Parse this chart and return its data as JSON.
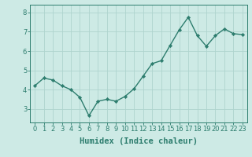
{
  "x": [
    0,
    1,
    2,
    3,
    4,
    5,
    6,
    7,
    8,
    9,
    10,
    11,
    12,
    13,
    14,
    15,
    16,
    17,
    18,
    19,
    20,
    21,
    22,
    23
  ],
  "y": [
    4.2,
    4.6,
    4.5,
    4.2,
    4.0,
    3.6,
    2.65,
    3.4,
    3.5,
    3.4,
    3.65,
    4.05,
    4.7,
    5.35,
    5.5,
    6.3,
    7.1,
    7.75,
    6.8,
    6.25,
    6.8,
    7.15,
    6.9,
    6.85
  ],
  "line_color": "#2d7d6e",
  "marker": "D",
  "marker_size": 2.2,
  "line_width": 1.0,
  "bg_color": "#cdeae5",
  "grid_color": "#aed4ce",
  "axis_color": "#2d7d6e",
  "xlabel": "Humidex (Indice chaleur)",
  "xlim": [
    -0.5,
    23.5
  ],
  "ylim": [
    2.3,
    8.4
  ],
  "yticks": [
    3,
    4,
    5,
    6,
    7,
    8
  ],
  "xticks": [
    0,
    1,
    2,
    3,
    4,
    5,
    6,
    7,
    8,
    9,
    10,
    11,
    12,
    13,
    14,
    15,
    16,
    17,
    18,
    19,
    20,
    21,
    22,
    23
  ],
  "xtick_labels": [
    "0",
    "1",
    "2",
    "3",
    "4",
    "5",
    "6",
    "7",
    "8",
    "9",
    "10",
    "11",
    "12",
    "13",
    "14",
    "15",
    "16",
    "17",
    "18",
    "19",
    "20",
    "21",
    "22",
    "23"
  ],
  "xlabel_fontsize": 7.5,
  "tick_fontsize": 6.0,
  "tick_color": "#2d7d6e",
  "fig_width": 3.2,
  "fig_height": 2.0,
  "dpi": 100
}
